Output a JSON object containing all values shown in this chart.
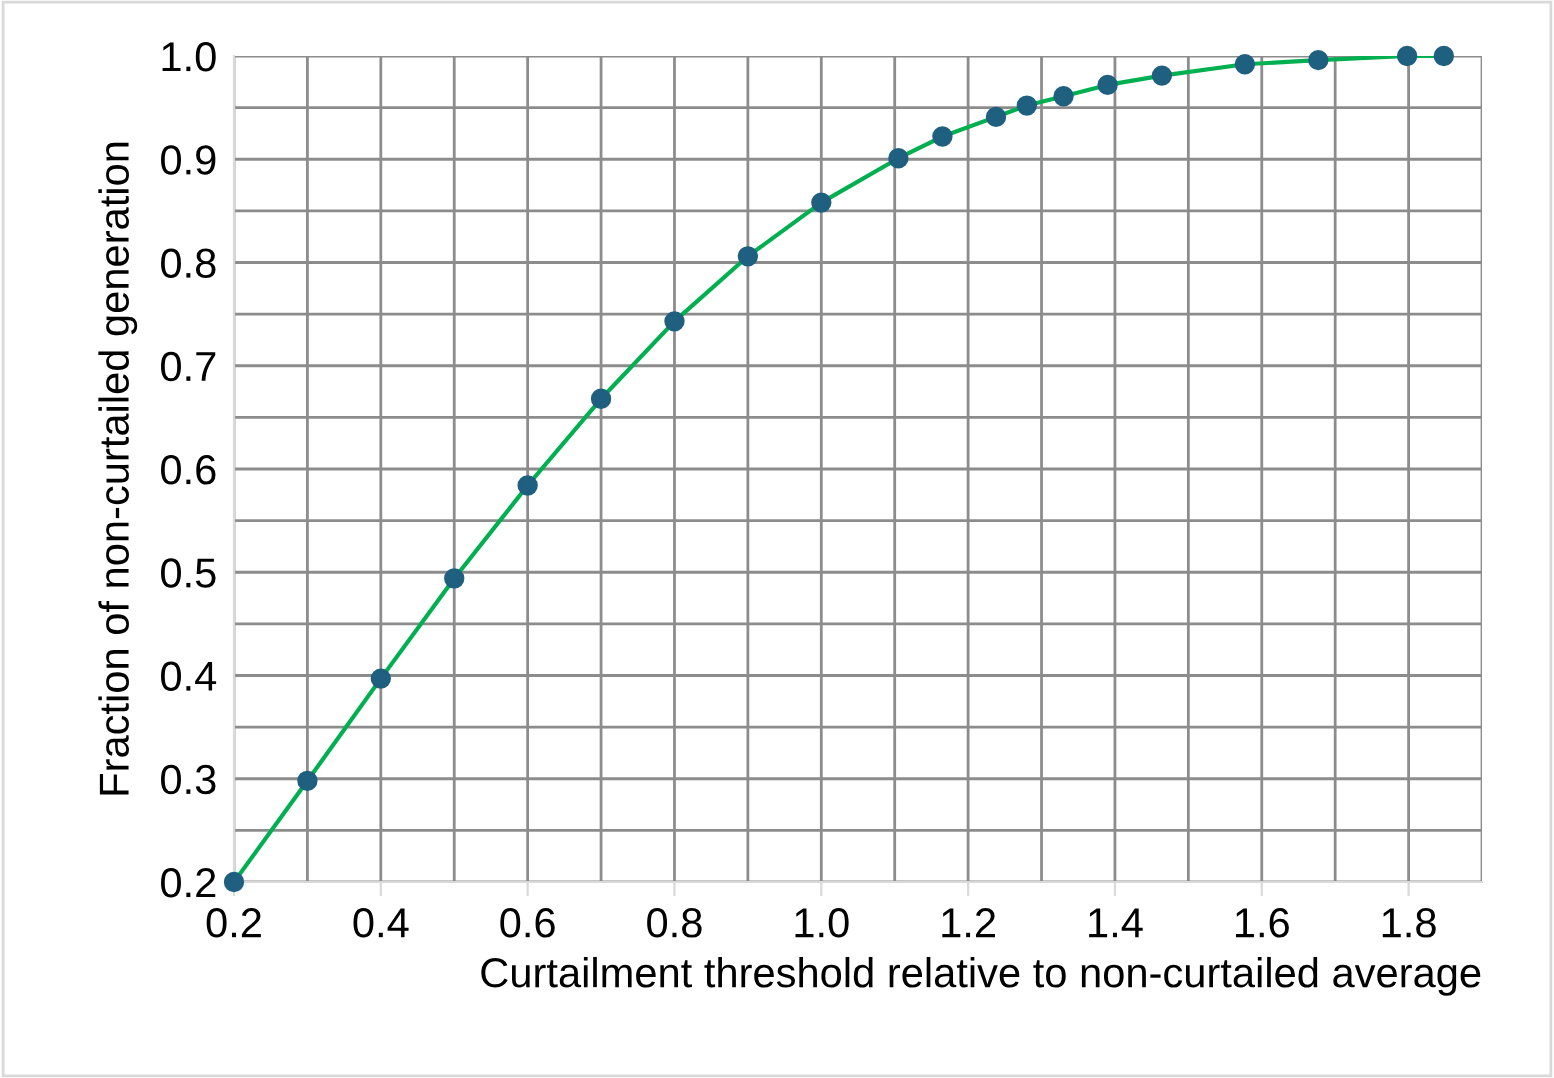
{
  "chart_data": {
    "type": "line",
    "xlabel": "Curtailment threshold relative to non-curtailed average",
    "ylabel": "Fraction of non-curtailed generation",
    "x": [
      0.2,
      0.3,
      0.4,
      0.5,
      0.6,
      0.7,
      0.8,
      0.9,
      1.0,
      1.105,
      1.165,
      1.238,
      1.28,
      1.33,
      1.39,
      1.464,
      1.577,
      1.677,
      1.798,
      1.848
    ],
    "series": [
      {
        "color": "#00b050",
        "marker": "none",
        "values": [
          0.2,
          0.298,
          0.397,
          0.494,
          0.584,
          0.668,
          0.743,
          0.806,
          0.858,
          0.901,
          0.922,
          0.941,
          0.952,
          0.961,
          0.972,
          0.981,
          0.992,
          0.996,
          1.0,
          1.0
        ]
      },
      {
        "type": "scatter",
        "color": "#1f5f7f",
        "marker": "circle",
        "values": [
          0.2,
          0.298,
          0.397,
          0.494,
          0.584,
          0.668,
          0.743,
          0.806,
          0.858,
          0.901,
          0.922,
          0.941,
          0.952,
          0.961,
          0.972,
          0.981,
          0.992,
          0.996,
          1.0,
          1.0
        ]
      }
    ],
    "xlim": [
      0.2,
      1.9
    ],
    "xticks": [
      0.2,
      0.4,
      0.6,
      0.8,
      {
        "value": 1,
        "label": "1.0"
      },
      1.2,
      1.4,
      1.6,
      1.8
    ],
    "ylim": [
      0.2,
      1.0
    ],
    "yticks": [
      0.2,
      0.3,
      0.4,
      0.5,
      0.6,
      0.7,
      0.8,
      0.9,
      {
        "value": 1,
        "label": "1.0"
      }
    ],
    "grid": true,
    "legend": false
  }
}
